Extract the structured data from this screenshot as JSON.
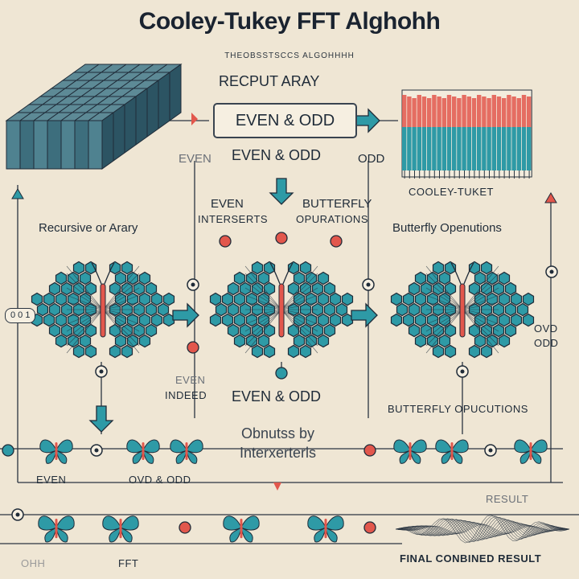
{
  "title": "Cooley-Tukey FFT Alghohh",
  "subtitle": "THEOBSSTSCCS ALGOHHHH",
  "top": {
    "recput": "RECPUT ARAY",
    "box": "EVEN & ODD",
    "even_odd": "EVEN & ODD",
    "even": "EVEN",
    "odd": "ODD",
    "cooley": "COOLEY-TUKET"
  },
  "middle": {
    "recursive": "Recursive or Arary",
    "even_inter": "EVEN",
    "even_inter2": "INTERSERTS",
    "butterfly_ops": "BUTTERFLY",
    "butterfly_ops2": "OPURATIONS",
    "butterfly_right": "Butterfly Openutions",
    "left_tag": "0 0 1",
    "ovd": "OVD",
    "odd": "ODD"
  },
  "lower": {
    "even_indeed1": "EVEN",
    "even_indeed2": "INDEED",
    "even_odd": "EVEN & ODD",
    "outputs1": "Obnutss by",
    "outputs2": "Interxerterls",
    "butterfly_ops": "BUTTERFLY OPUCUTIONS",
    "even": "EVEN",
    "ovd_odd": "OVD & ODD",
    "result": "RESULT"
  },
  "bottom": {
    "left_faint": "OHH",
    "fft": "FFT",
    "final": "FINAL CONBINED RESULT"
  },
  "colors": {
    "teal": "#2e9aa6",
    "coral": "#e2574c",
    "navy": "#1f2b38",
    "bg": "#efe6d4"
  }
}
